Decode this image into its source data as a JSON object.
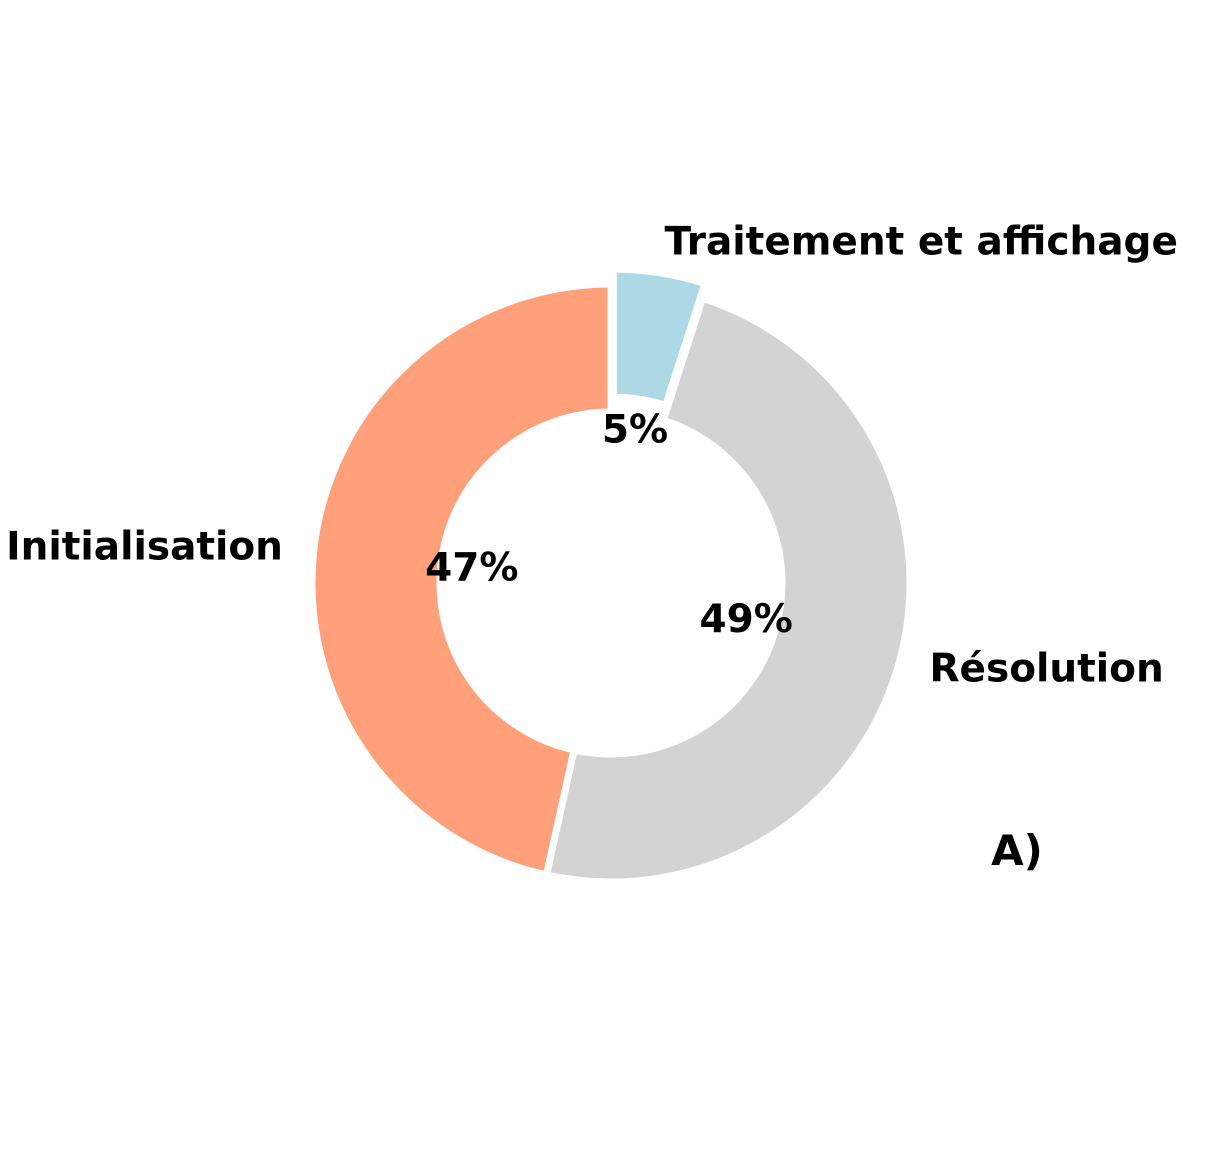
{
  "chart_data": {
    "type": "pie",
    "variant": "donut",
    "panel_label": "A)",
    "slices": [
      {
        "name": "Traitement et affichage",
        "value": 5,
        "pct_label": "5%",
        "color": "#add8e6",
        "exploded": true
      },
      {
        "name": "Résolution",
        "value": 49,
        "pct_label": "49%",
        "color": "#d3d3d3",
        "exploded": false
      },
      {
        "name": "Initialisation",
        "value": 47,
        "pct_label": "47%",
        "color": "#ffa07a",
        "exploded": false
      }
    ],
    "start_angle_deg": 90,
    "direction": "clockwise",
    "legend": "none"
  }
}
